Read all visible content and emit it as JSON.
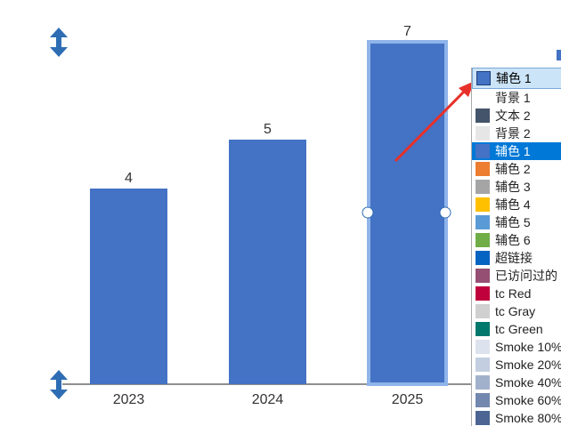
{
  "chart_data": {
    "type": "bar",
    "categories": [
      "2023",
      "2024",
      "2025"
    ],
    "values": [
      4,
      5,
      7
    ],
    "color": "#4472c4",
    "ylim": [
      0,
      7.6
    ]
  },
  "dropdown": {
    "current": "辅色 1",
    "current_color": "#4472c4",
    "selected": 3,
    "items": [
      {
        "label": "背景 1",
        "color": "#ffffff"
      },
      {
        "label": "文本 2",
        "color": "#44546a"
      },
      {
        "label": "背景 2",
        "color": "#e7e6e6"
      },
      {
        "label": "辅色 1",
        "color": "#4472c4"
      },
      {
        "label": "辅色 2",
        "color": "#ed7d31"
      },
      {
        "label": "辅色 3",
        "color": "#a5a5a5"
      },
      {
        "label": "辅色 4",
        "color": "#ffc000"
      },
      {
        "label": "辅色 5",
        "color": "#5b9bd5"
      },
      {
        "label": "辅色 6",
        "color": "#70ad47"
      },
      {
        "label": "超链接",
        "color": "#0563c1"
      },
      {
        "label": "已访问过的",
        "color": "#954f72"
      },
      {
        "label": "tc Red",
        "color": "#c0003c"
      },
      {
        "label": "tc Gray",
        "color": "#d0d0d0"
      },
      {
        "label": "tc Green",
        "color": "#00786c"
      },
      {
        "label": "Smoke 10%",
        "color": "#dce3ee"
      },
      {
        "label": "Smoke 20%",
        "color": "#c3cee0"
      },
      {
        "label": "Smoke 40%",
        "color": "#a2b1cb"
      },
      {
        "label": "Smoke 60%",
        "color": "#7288ae"
      },
      {
        "label": "Smoke 80%",
        "color": "#4c6593"
      }
    ]
  }
}
